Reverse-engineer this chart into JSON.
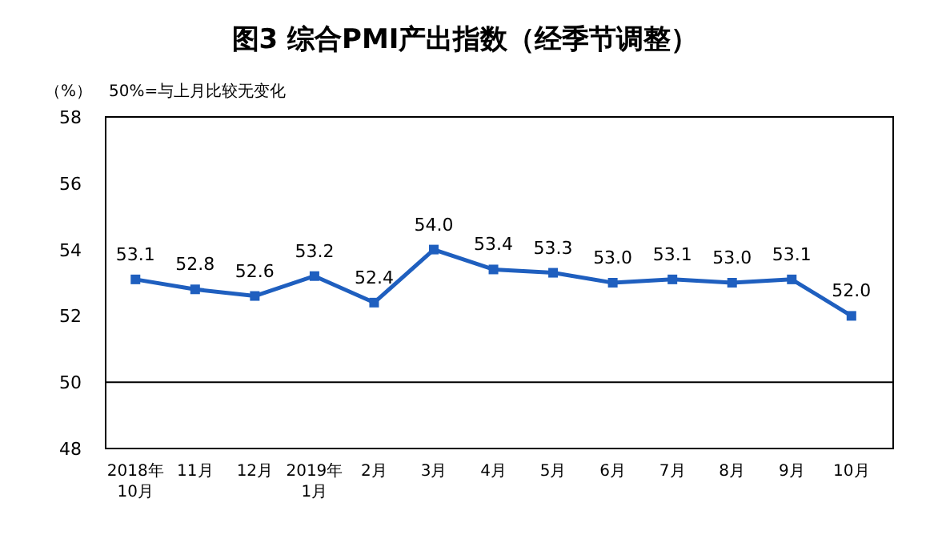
{
  "chart_data": {
    "type": "line",
    "title": "图3 综合PMI产出指数（经季节调整）",
    "ylabel": "（%）",
    "annotations": [
      "50%=与上月比较无变化"
    ],
    "categories": [
      "2018年\n10月",
      "11月",
      "12月",
      "2019年\n1月",
      "2月",
      "3月",
      "4月",
      "5月",
      "6月",
      "7月",
      "8月",
      "9月",
      "10月"
    ],
    "series": [
      {
        "color": "#1f5fbf",
        "values": [
          53.1,
          52.8,
          52.6,
          53.2,
          52.4,
          54.0,
          53.4,
          53.3,
          53.0,
          53.1,
          53.0,
          53.1,
          52.0
        ],
        "value_labels": [
          "53.1",
          "52.8",
          "52.6",
          "53.2",
          "52.4",
          "54.0",
          "53.4",
          "53.3",
          "53.0",
          "53.1",
          "53.0",
          "53.1",
          "52.0"
        ]
      }
    ],
    "ylim": [
      48,
      58
    ],
    "yticks": [
      48,
      50,
      52,
      54,
      56,
      58
    ],
    "ref_lines": [
      {
        "axis": "y",
        "value": 50,
        "color": "#000000"
      }
    ],
    "marker": "square",
    "line_style": "solid",
    "grid": false
  }
}
